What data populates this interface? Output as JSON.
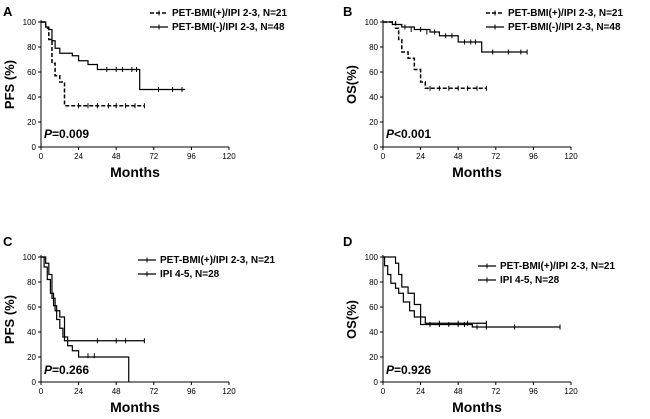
{
  "chart_data": [
    {
      "type": "line",
      "panel": "A",
      "xlabel": "Months",
      "ylabel": "PFS (%)",
      "xlim": [
        0,
        120
      ],
      "ylim": [
        0,
        100
      ],
      "xticks": [
        0,
        24,
        48,
        72,
        96,
        120
      ],
      "yticks": [
        0,
        20,
        40,
        60,
        80,
        100
      ],
      "pvalue_italic": "P",
      "pvalue_text": "=0.009",
      "legend_position": "top-right",
      "series": [
        {
          "name": "PET-BMI(+)/IPI 2-3, N=21",
          "dash": true,
          "steps": [
            [
              0,
              100
            ],
            [
              3,
              95
            ],
            [
              5,
              86
            ],
            [
              7,
              67
            ],
            [
              9,
              57
            ],
            [
              12,
              52
            ],
            [
              15,
              33
            ],
            [
              66,
              33
            ]
          ],
          "censors": [
            [
              24,
              33
            ],
            [
              30,
              33
            ],
            [
              36,
              33
            ],
            [
              43,
              33
            ],
            [
              48,
              33
            ],
            [
              54,
              33
            ],
            [
              60,
              33
            ],
            [
              66,
              33
            ]
          ]
        },
        {
          "name": "PET-BMI(-)/IPI 2-3, N=48",
          "dash": false,
          "steps": [
            [
              0,
              100
            ],
            [
              3,
              96
            ],
            [
              5,
              94
            ],
            [
              7,
              85
            ],
            [
              9,
              79
            ],
            [
              12,
              75
            ],
            [
              20,
              73
            ],
            [
              24,
              69
            ],
            [
              30,
              66
            ],
            [
              36,
              62
            ],
            [
              63,
              62
            ],
            [
              63,
              46
            ],
            [
              92,
              46
            ]
          ],
          "censors": [
            [
              42,
              62
            ],
            [
              48,
              62
            ],
            [
              52,
              62
            ],
            [
              58,
              62
            ],
            [
              61,
              62
            ],
            [
              75,
              46
            ],
            [
              84,
              46
            ],
            [
              90,
              46
            ]
          ]
        }
      ]
    },
    {
      "type": "line",
      "panel": "B",
      "xlabel": "Months",
      "ylabel": "OS(%)",
      "xlim": [
        0,
        120
      ],
      "ylim": [
        0,
        100
      ],
      "xticks": [
        0,
        24,
        48,
        72,
        96,
        120
      ],
      "yticks": [
        0,
        20,
        40,
        60,
        80,
        100
      ],
      "pvalue_italic": "P",
      "pvalue_text": "<0.001",
      "legend_position": "top-right",
      "series": [
        {
          "name": "PET-BMI(+)/IPI 2-3, N=21",
          "dash": true,
          "steps": [
            [
              0,
              100
            ],
            [
              8,
              95
            ],
            [
              10,
              86
            ],
            [
              12,
              76
            ],
            [
              16,
              71
            ],
            [
              20,
              62
            ],
            [
              24,
              52
            ],
            [
              27,
              47
            ],
            [
              66,
              47
            ]
          ],
          "censors": [
            [
              30,
              47
            ],
            [
              36,
              47
            ],
            [
              42,
              47
            ],
            [
              48,
              47
            ],
            [
              54,
              47
            ],
            [
              60,
              47
            ],
            [
              66,
              47
            ]
          ]
        },
        {
          "name": "PET-BMI(-)/IPI 2-3, N=48",
          "dash": false,
          "steps": [
            [
              0,
              100
            ],
            [
              6,
              98
            ],
            [
              12,
              96
            ],
            [
              20,
              94
            ],
            [
              30,
              92
            ],
            [
              36,
              89
            ],
            [
              48,
              84
            ],
            [
              60,
              84
            ],
            [
              63,
              76
            ],
            [
              92,
              76
            ]
          ],
          "censors": [
            [
              14,
              96
            ],
            [
              18,
              94
            ],
            [
              24,
              94
            ],
            [
              28,
              92
            ],
            [
              33,
              92
            ],
            [
              40,
              89
            ],
            [
              44,
              89
            ],
            [
              52,
              84
            ],
            [
              56,
              84
            ],
            [
              59,
              84
            ],
            [
              70,
              76
            ],
            [
              80,
              76
            ],
            [
              88,
              76
            ],
            [
              92,
              76
            ]
          ]
        }
      ]
    },
    {
      "type": "line",
      "panel": "C",
      "xlabel": "Months",
      "ylabel": "PFS (%)",
      "xlim": [
        0,
        120
      ],
      "ylim": [
        0,
        100
      ],
      "xticks": [
        0,
        24,
        48,
        72,
        96,
        120
      ],
      "yticks": [
        0,
        20,
        40,
        60,
        80,
        100
      ],
      "pvalue_italic": "P",
      "pvalue_text": "=0.266",
      "legend_position": "top-right",
      "series": [
        {
          "name": "PET-BMI(+)/IPI 2-3, N=21",
          "dash": false,
          "steps": [
            [
              0,
              100
            ],
            [
              3,
              95
            ],
            [
              5,
              86
            ],
            [
              7,
              67
            ],
            [
              9,
              57
            ],
            [
              12,
              52
            ],
            [
              15,
              33
            ],
            [
              66,
              33
            ]
          ],
          "censors": [
            [
              36,
              33
            ],
            [
              48,
              33
            ],
            [
              54,
              33
            ],
            [
              66,
              33
            ]
          ]
        },
        {
          "name": "IPI 4-5, N=28",
          "dash": false,
          "steps": [
            [
              0,
              100
            ],
            [
              2,
              92
            ],
            [
              4,
              82
            ],
            [
              6,
              71
            ],
            [
              8,
              61
            ],
            [
              10,
              50
            ],
            [
              12,
              43
            ],
            [
              14,
              36
            ],
            [
              17,
              29
            ],
            [
              20,
              25
            ],
            [
              24,
              20
            ],
            [
              56,
              20
            ],
            [
              56,
              0
            ]
          ],
          "censors": [
            [
              30,
              21
            ],
            [
              34,
              21
            ]
          ]
        }
      ]
    },
    {
      "type": "line",
      "panel": "D",
      "xlabel": "Months",
      "ylabel": "OS(%)",
      "xlim": [
        0,
        120
      ],
      "ylim": [
        0,
        100
      ],
      "xticks": [
        0,
        24,
        48,
        72,
        96,
        120
      ],
      "yticks": [
        0,
        20,
        40,
        60,
        80,
        100
      ],
      "pvalue_italic": "P",
      "pvalue_text": "=0.926",
      "legend_position": "top-right",
      "series": [
        {
          "name": "PET-BMI(+)/IPI 2-3, N=21",
          "dash": false,
          "steps": [
            [
              0,
              100
            ],
            [
              8,
              95
            ],
            [
              10,
              86
            ],
            [
              12,
              76
            ],
            [
              16,
              71
            ],
            [
              20,
              62
            ],
            [
              24,
              52
            ],
            [
              27,
              47
            ],
            [
              66,
              47
            ]
          ],
          "censors": [
            [
              36,
              47
            ],
            [
              48,
              47
            ],
            [
              54,
              47
            ],
            [
              66,
              47
            ]
          ]
        },
        {
          "name": "IPI 4-5, N=28",
          "dash": false,
          "steps": [
            [
              0,
              100
            ],
            [
              1,
              93
            ],
            [
              3,
              86
            ],
            [
              5,
              79
            ],
            [
              8,
              75
            ],
            [
              10,
              71
            ],
            [
              13,
              64
            ],
            [
              17,
              57
            ],
            [
              20,
              52
            ],
            [
              24,
              46
            ],
            [
              55,
              46
            ],
            [
              57,
              44
            ],
            [
              113,
              44
            ]
          ],
          "censors": [
            [
              30,
              46
            ],
            [
              36,
              46
            ],
            [
              42,
              46
            ],
            [
              48,
              46
            ],
            [
              52,
              46
            ],
            [
              60,
              44
            ],
            [
              66,
              44
            ],
            [
              84,
              44
            ],
            [
              113,
              44
            ]
          ]
        }
      ]
    }
  ]
}
